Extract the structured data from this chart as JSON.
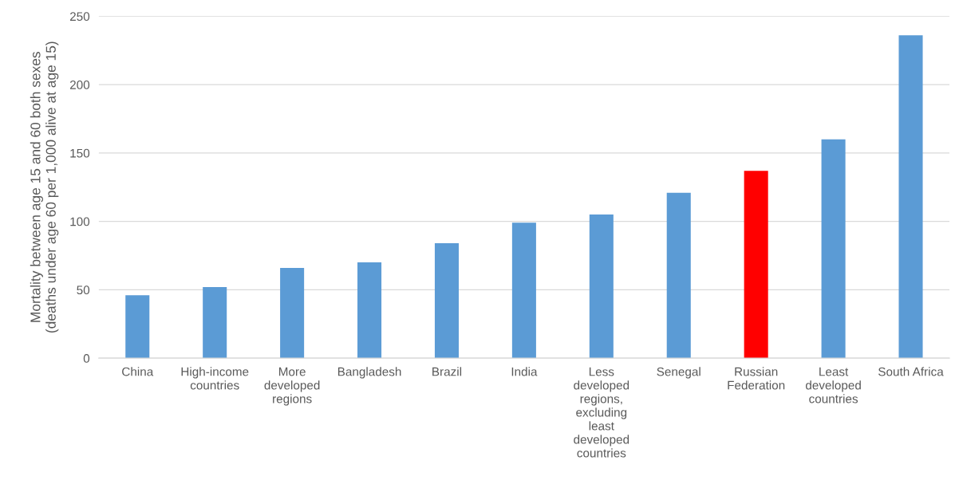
{
  "chart_data": {
    "type": "bar",
    "ylabel": "Mortality between age 15 and 60 both sexes\n(deaths under age 60 per 1,000 alive at age 15)",
    "categories": [
      "China",
      "High-income countries",
      "More developed regions",
      "Bangladesh",
      "Brazil",
      "India",
      "Less developed regions, excluding least developed countries",
      "Senegal",
      "Russian Federation",
      "Least developed countries",
      "South Africa"
    ],
    "values": [
      46,
      52,
      66,
      70,
      84,
      99,
      105,
      121,
      137,
      160,
      236
    ],
    "colors": [
      "#5b9bd5",
      "#5b9bd5",
      "#5b9bd5",
      "#5b9bd5",
      "#5b9bd5",
      "#5b9bd5",
      "#5b9bd5",
      "#5b9bd5",
      "#ff0000",
      "#5b9bd5",
      "#5b9bd5"
    ],
    "ylim": [
      0,
      250
    ],
    "yticks": [
      0,
      50,
      100,
      150,
      200,
      250
    ],
    "grid": "y",
    "legend": false
  }
}
